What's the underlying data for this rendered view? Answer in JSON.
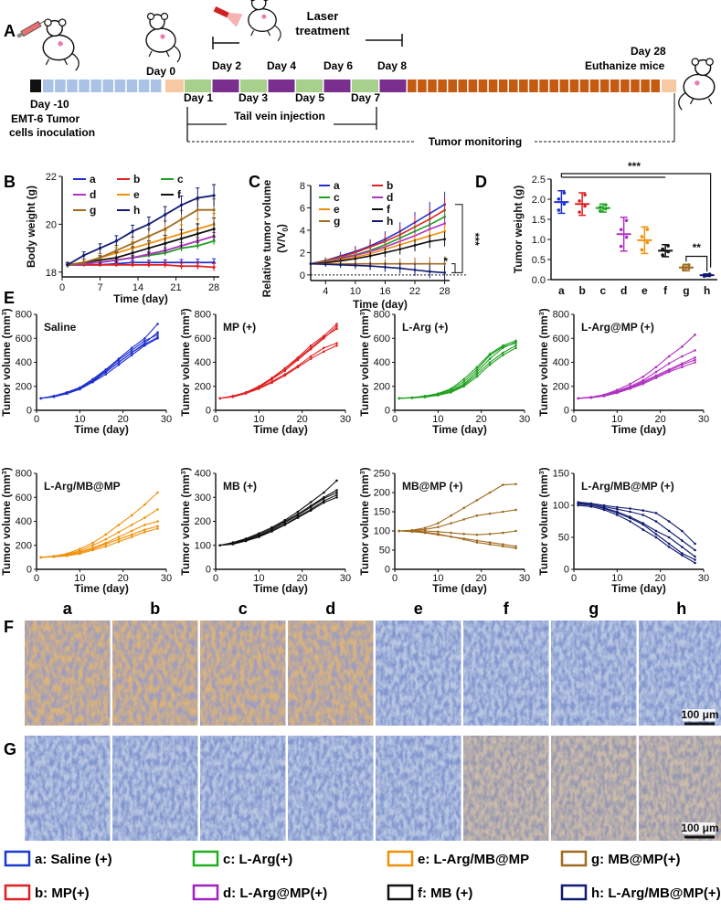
{
  "panel_letters": {
    "A": "A",
    "B": "B",
    "C": "C",
    "D": "D",
    "E": "E",
    "F": "F",
    "G": "G"
  },
  "timeline": {
    "day_m10": "Day -10",
    "inoculation_line1": "EMT-6 Tumor",
    "inoculation_line2": "cells inoculation",
    "day0": "Day 0",
    "day1": "Day 1",
    "day2": "Day 2",
    "day3": "Day 3",
    "day4": "Day 4",
    "day5": "Day 5",
    "day6": "Day 6",
    "day7": "Day 7",
    "day8": "Day 8",
    "laser_line1": "Laser",
    "laser_line2": "treatment",
    "day28": "Day 28",
    "euthanize": "Euthanize mice",
    "tail_vein": "Tail vein injection",
    "monitoring": "Tumor monitoring",
    "colors": {
      "black": "#111111",
      "light_blue": "#a9c2e6",
      "peach": "#f6c9a3",
      "green": "#a8d08d",
      "purple": "#7a2f8f",
      "brown": "#c55a11"
    }
  },
  "group_colors": {
    "a": "#2030d0",
    "b": "#e02020",
    "c": "#20a020",
    "d": "#b030c0",
    "e": "#f0900a",
    "f": "#111111",
    "g": "#a06a20",
    "h": "#101a70"
  },
  "chart_data": [
    {
      "type": "line",
      "panel": "B",
      "xlabel": "Time (day)",
      "ylabel": "Body weight (g)",
      "xlim": [
        0,
        29
      ],
      "ylim": [
        17.8,
        22
      ],
      "xticks": [
        "0",
        "7",
        "14",
        "21",
        "28"
      ],
      "yticks": [
        "18",
        "20",
        "22"
      ],
      "legend": [
        "a",
        "b",
        "c",
        "d",
        "e",
        "f",
        "g",
        "h"
      ],
      "x": [
        1,
        4,
        7,
        10,
        13,
        16,
        19,
        22,
        25,
        28
      ],
      "series": [
        {
          "name": "a",
          "values": [
            18.3,
            18.3,
            18.3,
            18.35,
            18.4,
            18.4,
            18.4,
            18.4,
            18.4,
            18.4
          ]
        },
        {
          "name": "b",
          "values": [
            18.3,
            18.3,
            18.3,
            18.3,
            18.3,
            18.3,
            18.3,
            18.25,
            18.25,
            18.2
          ]
        },
        {
          "name": "c",
          "values": [
            18.3,
            18.35,
            18.4,
            18.5,
            18.6,
            18.7,
            18.8,
            19.0,
            19.1,
            19.3
          ]
        },
        {
          "name": "d",
          "values": [
            18.3,
            18.35,
            18.4,
            18.5,
            18.6,
            18.75,
            18.9,
            19.1,
            19.3,
            19.5
          ]
        },
        {
          "name": "e",
          "values": [
            18.3,
            18.4,
            18.6,
            18.8,
            19.0,
            19.2,
            19.4,
            19.6,
            19.8,
            20.0
          ]
        },
        {
          "name": "f",
          "values": [
            18.3,
            18.4,
            18.5,
            18.6,
            18.8,
            19.0,
            19.2,
            19.4,
            19.6,
            19.8
          ]
        },
        {
          "name": "g",
          "values": [
            18.3,
            18.4,
            18.6,
            18.9,
            19.2,
            19.5,
            19.8,
            20.2,
            20.6,
            20.6
          ]
        },
        {
          "name": "h",
          "values": [
            18.3,
            18.7,
            19.0,
            19.3,
            19.7,
            20.0,
            20.4,
            20.8,
            21.1,
            21.2
          ]
        }
      ]
    },
    {
      "type": "line",
      "panel": "C",
      "xlabel": "Time (day)",
      "ylabel": "Relative tumor volume",
      "ylabel2": "(V/V",
      "ylabel2_sub": "0",
      "ylabel2_end": ")",
      "xlim": [
        1,
        29
      ],
      "ylim": [
        -0.5,
        8
      ],
      "xticks": [
        "4",
        "10",
        "16",
        "22",
        "28"
      ],
      "yticks": [
        "0",
        "2",
        "4",
        "6",
        "8"
      ],
      "legend": [
        "a",
        "b",
        "c",
        "d",
        "e",
        "f",
        "g",
        "h"
      ],
      "sig": [
        "***",
        "*"
      ],
      "x": [
        1,
        4,
        7,
        10,
        13,
        16,
        19,
        22,
        25,
        28
      ],
      "series": [
        {
          "name": "a",
          "values": [
            1.0,
            1.3,
            1.7,
            2.1,
            2.6,
            3.2,
            3.9,
            4.7,
            5.5,
            6.3
          ]
        },
        {
          "name": "b",
          "values": [
            1.0,
            1.3,
            1.6,
            2.0,
            2.5,
            3.0,
            3.6,
            4.3,
            5.0,
            5.8
          ]
        },
        {
          "name": "c",
          "values": [
            1.0,
            1.25,
            1.5,
            1.8,
            2.2,
            2.7,
            3.3,
            3.9,
            4.5,
            5.2
          ]
        },
        {
          "name": "d",
          "values": [
            1.0,
            1.2,
            1.45,
            1.75,
            2.1,
            2.5,
            3.0,
            3.5,
            4.1,
            4.6
          ]
        },
        {
          "name": "e",
          "values": [
            1.0,
            1.15,
            1.35,
            1.6,
            1.9,
            2.3,
            2.7,
            3.1,
            3.5,
            3.9
          ]
        },
        {
          "name": "f",
          "values": [
            1.0,
            1.1,
            1.25,
            1.45,
            1.7,
            2.0,
            2.3,
            2.65,
            3.0,
            3.2
          ]
        },
        {
          "name": "g",
          "values": [
            1.0,
            1.0,
            1.0,
            1.0,
            1.0,
            1.0,
            1.0,
            1.0,
            1.0,
            1.0
          ]
        },
        {
          "name": "h",
          "values": [
            1.0,
            0.95,
            0.9,
            0.85,
            0.8,
            0.7,
            0.6,
            0.45,
            0.3,
            0.2
          ]
        }
      ]
    },
    {
      "type": "scatter",
      "panel": "D",
      "ylabel": "Tumor weight (g)",
      "categories": [
        "a",
        "b",
        "c",
        "d",
        "e",
        "f",
        "g",
        "h"
      ],
      "ylim": [
        0,
        2.5
      ],
      "yticks": [
        "0.0",
        "0.5",
        "1.0",
        "1.5",
        "2.0",
        "2.5"
      ],
      "means": [
        1.93,
        1.88,
        1.78,
        1.13,
        0.98,
        0.72,
        0.3,
        0.11
      ],
      "sds": [
        0.28,
        0.28,
        0.1,
        0.42,
        0.33,
        0.15,
        0.08,
        0.03
      ],
      "sig": [
        "***",
        "**"
      ]
    }
  ],
  "panelE": {
    "ylabel": "Tumor volume (mm",
    "ylabel_sup": "3",
    "ylabel_end": ")",
    "xlabel": "Time (day)",
    "xticks": [
      "0",
      "10",
      "20",
      "30"
    ],
    "x": [
      1,
      4,
      7,
      10,
      13,
      16,
      19,
      22,
      25,
      28
    ],
    "charts": [
      {
        "title": "Saline",
        "color": "#2030d0",
        "ymax": 800,
        "yticks": [
          "0",
          "200",
          "400",
          "600",
          "800"
        ],
        "lines": [
          [
            100,
            120,
            150,
            190,
            260,
            340,
            430,
            520,
            600,
            720
          ],
          [
            100,
            115,
            140,
            180,
            240,
            320,
            400,
            480,
            560,
            650
          ],
          [
            100,
            118,
            145,
            185,
            250,
            330,
            420,
            500,
            580,
            630
          ],
          [
            100,
            112,
            138,
            175,
            235,
            300,
            380,
            460,
            540,
            600
          ],
          [
            100,
            116,
            142,
            180,
            245,
            320,
            400,
            480,
            550,
            610
          ]
        ]
      },
      {
        "title": "MP (+)",
        "color": "#e02020",
        "ymax": 800,
        "yticks": [
          "0",
          "200",
          "400",
          "600",
          "800"
        ],
        "lines": [
          [
            100,
            120,
            150,
            200,
            270,
            350,
            440,
            540,
            620,
            720
          ],
          [
            100,
            115,
            145,
            190,
            260,
            330,
            420,
            510,
            600,
            700
          ],
          [
            100,
            118,
            148,
            185,
            240,
            300,
            370,
            450,
            520,
            560
          ],
          [
            100,
            112,
            140,
            180,
            230,
            290,
            360,
            430,
            490,
            540
          ],
          [
            100,
            116,
            146,
            195,
            265,
            345,
            430,
            520,
            610,
            680
          ]
        ]
      },
      {
        "title": "L-Arg (+)",
        "color": "#20a020",
        "ymax": 800,
        "yticks": [
          "0",
          "200",
          "400",
          "600",
          "800"
        ],
        "lines": [
          [
            100,
            105,
            115,
            130,
            160,
            220,
            320,
            430,
            520,
            570
          ],
          [
            100,
            105,
            118,
            135,
            170,
            240,
            340,
            460,
            530,
            560
          ],
          [
            100,
            104,
            112,
            128,
            155,
            210,
            300,
            400,
            480,
            540
          ],
          [
            100,
            106,
            120,
            140,
            180,
            260,
            360,
            470,
            540,
            580
          ],
          [
            100,
            103,
            110,
            125,
            150,
            200,
            280,
            380,
            460,
            520
          ]
        ]
      },
      {
        "title": "L-Arg@MP (+)",
        "color": "#b030c0",
        "ymax": 800,
        "yticks": [
          "0",
          "200",
          "400",
          "600",
          "800"
        ],
        "lines": [
          [
            100,
            110,
            130,
            170,
            220,
            280,
            360,
            450,
            530,
            630
          ],
          [
            100,
            108,
            125,
            160,
            200,
            250,
            320,
            390,
            450,
            500
          ],
          [
            100,
            106,
            120,
            150,
            185,
            230,
            280,
            330,
            380,
            420
          ],
          [
            100,
            105,
            118,
            145,
            180,
            220,
            270,
            320,
            360,
            400
          ],
          [
            100,
            107,
            122,
            155,
            190,
            240,
            290,
            340,
            390,
            440
          ]
        ]
      },
      {
        "title": "L-Arg/MB@MP",
        "color": "#f0900a",
        "ymax": 800,
        "yticks": [
          "0",
          "200",
          "400",
          "600",
          "800"
        ],
        "lines": [
          [
            100,
            110,
            130,
            170,
            220,
            290,
            370,
            450,
            540,
            640
          ],
          [
            100,
            108,
            125,
            155,
            200,
            250,
            310,
            370,
            430,
            500
          ],
          [
            100,
            106,
            120,
            145,
            180,
            220,
            270,
            320,
            370,
            400
          ],
          [
            100,
            105,
            115,
            140,
            170,
            210,
            250,
            290,
            330,
            360
          ],
          [
            100,
            104,
            112,
            130,
            160,
            190,
            230,
            270,
            310,
            340
          ]
        ]
      },
      {
        "title": "MB (+)",
        "color": "#111111",
        "ymax": 400,
        "yticks": [
          "0",
          "100",
          "200",
          "300",
          "400"
        ],
        "lines": [
          [
            100,
            112,
            128,
            150,
            175,
            205,
            240,
            280,
            320,
            370
          ],
          [
            100,
            110,
            125,
            145,
            170,
            200,
            230,
            265,
            300,
            330
          ],
          [
            100,
            108,
            122,
            140,
            165,
            195,
            225,
            260,
            295,
            320
          ],
          [
            100,
            106,
            120,
            138,
            160,
            188,
            218,
            250,
            285,
            310
          ],
          [
            100,
            105,
            118,
            135,
            158,
            185,
            215,
            245,
            278,
            300
          ]
        ]
      },
      {
        "title": "MB@MP (+)",
        "color": "#a06a20",
        "ymax": 250,
        "yticks": [
          "0",
          "50",
          "100",
          "150",
          "200",
          "250"
        ],
        "lines": [
          [
            100,
            102,
            108,
            120,
            140,
            160,
            180,
            200,
            220,
            222
          ],
          [
            100,
            101,
            104,
            110,
            120,
            130,
            140,
            145,
            150,
            155
          ],
          [
            100,
            100,
            100,
            98,
            95,
            92,
            90,
            92,
            95,
            100
          ],
          [
            100,
            99,
            97,
            92,
            85,
            78,
            70,
            65,
            60,
            55
          ],
          [
            100,
            98,
            95,
            90,
            85,
            80,
            75,
            70,
            65,
            60
          ]
        ]
      },
      {
        "title": "L-Arg/MB@MP (+)",
        "color": "#101a70",
        "ymax": 150,
        "yticks": [
          "0",
          "50",
          "100",
          "150"
        ],
        "lines": [
          [
            105,
            103,
            100,
            97,
            95,
            92,
            88,
            75,
            60,
            40
          ],
          [
            104,
            102,
            98,
            94,
            90,
            85,
            75,
            60,
            45,
            30
          ],
          [
            103,
            100,
            96,
            90,
            82,
            72,
            60,
            50,
            35,
            20
          ],
          [
            102,
            100,
            95,
            88,
            80,
            70,
            55,
            40,
            25,
            15
          ],
          [
            100,
            98,
            93,
            85,
            75,
            62,
            50,
            35,
            22,
            10
          ]
        ]
      }
    ]
  },
  "panelF": {
    "labels": [
      "a",
      "b",
      "c",
      "d",
      "e",
      "f",
      "g",
      "h"
    ],
    "scale": "100 μm"
  },
  "panelG": {
    "scale": "100 μm"
  },
  "legend": [
    {
      "key": "a",
      "label": "a: Saline (+)",
      "color": "#1a3ad0"
    },
    {
      "key": "c",
      "label": "c: L-Arg(+)",
      "color": "#20b020"
    },
    {
      "key": "e",
      "label": "e: L-Arg/MB@MP",
      "color": "#f0900a"
    },
    {
      "key": "g",
      "label": "g: MB@MP(+)",
      "color": "#a06a20"
    },
    {
      "key": "b",
      "label": "b: MP(+)",
      "color": "#e02020"
    },
    {
      "key": "d",
      "label": "d: L-Arg@MP(+)",
      "color": "#a020c0"
    },
    {
      "key": "f",
      "label": "f: MB (+)",
      "color": "#111111"
    },
    {
      "key": "h",
      "label": "h: L-Arg/MB@MP(+)",
      "color": "#101a70"
    }
  ]
}
